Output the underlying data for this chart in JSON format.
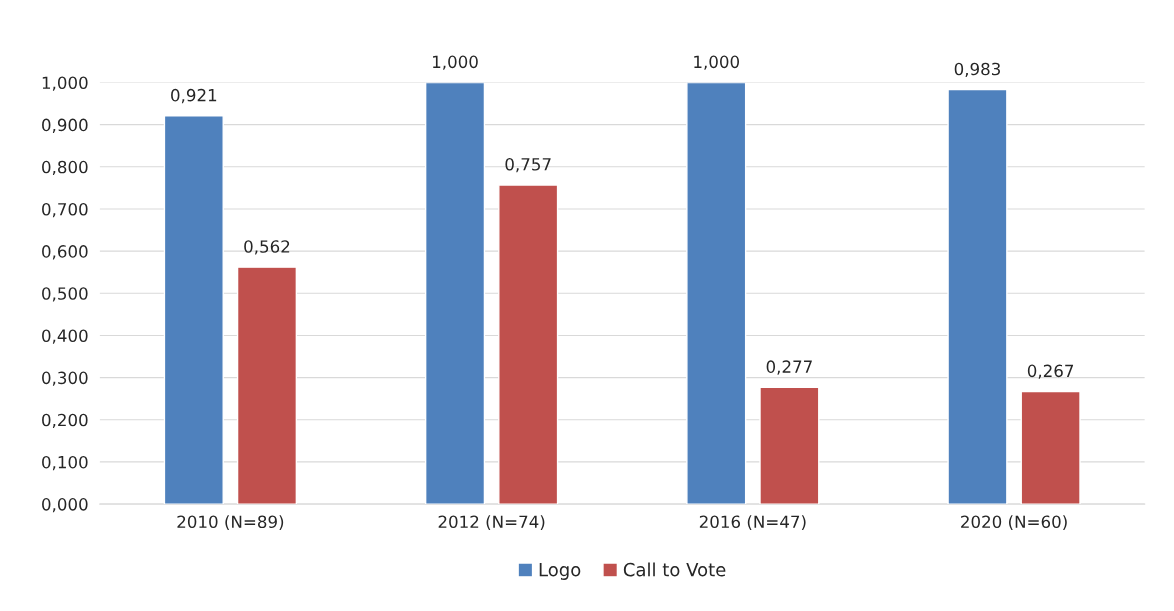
{
  "chart_data": {
    "type": "bar",
    "categories": [
      "2010 (N=89)",
      "2012 (N=74)",
      "2016 (N=47)",
      "2020 (N=60)"
    ],
    "series": [
      {
        "name": "Logo",
        "color": "#4f81bd",
        "values": [
          0.921,
          1.0,
          1.0,
          0.983
        ],
        "value_labels": [
          "0,921",
          "1,000",
          "1,000",
          "0,983"
        ]
      },
      {
        "name": "Call to Vote",
        "color": "#c0504d",
        "values": [
          0.562,
          0.757,
          0.277,
          0.267
        ],
        "value_labels": [
          "0,562",
          "0,757",
          "0,277",
          "0,267"
        ]
      }
    ],
    "ylim": [
      0,
      1
    ],
    "yticks": [
      {
        "value": 0,
        "label": "0,000"
      },
      {
        "value": 0.1,
        "label": "0,100"
      },
      {
        "value": 0.2,
        "label": "0,200"
      },
      {
        "value": 0.3,
        "label": "0,300"
      },
      {
        "value": 0.4,
        "label": "0,400"
      },
      {
        "value": 0.5,
        "label": "0,500"
      },
      {
        "value": 0.6,
        "label": "0,600"
      },
      {
        "value": 0.7,
        "label": "0,700"
      },
      {
        "value": 0.8,
        "label": "0,800"
      },
      {
        "value": 0.9,
        "label": "0,900"
      },
      {
        "value": 1.0,
        "label": "1,000"
      }
    ],
    "grid": "y",
    "legend": "bottom"
  }
}
